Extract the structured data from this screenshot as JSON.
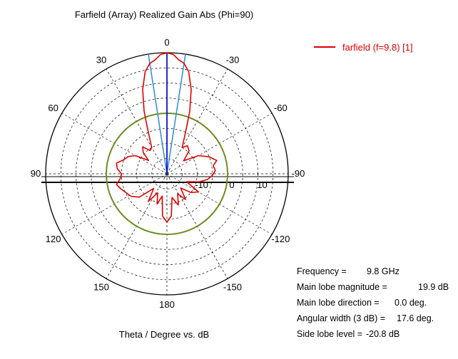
{
  "chart_data": {
    "type": "polar",
    "title": "Farfield (Array) Realized Gain Abs (Phi=90)",
    "xlabel": "Theta / Degree vs. dB",
    "angle_ticks": [
      {
        "angle": 0,
        "label": "0"
      },
      {
        "angle": 30,
        "label": "-30"
      },
      {
        "angle": 60,
        "label": "-60"
      },
      {
        "angle": 90,
        "label": "-90"
      },
      {
        "angle": 120,
        "label": "-120"
      },
      {
        "angle": 150,
        "label": "-150"
      },
      {
        "angle": 180,
        "label": "180"
      },
      {
        "angle": 210,
        "label": "150"
      },
      {
        "angle": 240,
        "label": "120"
      },
      {
        "angle": 270,
        "label": "90"
      },
      {
        "angle": 300,
        "label": "60"
      },
      {
        "angle": 330,
        "label": "30"
      }
    ],
    "radial_ticks": [
      {
        "value": -10,
        "label": "-10"
      },
      {
        "value": 0,
        "label": "0"
      },
      {
        "value": 10,
        "label": "10"
      }
    ],
    "radial_range": [
      -20,
      20
    ],
    "grid": true,
    "series": [
      {
        "name": "farfield (f=9.8) [1]",
        "color": "#e00000",
        "points": [
          [
            0,
            19.9
          ],
          [
            3,
            19.5
          ],
          [
            6,
            17.8
          ],
          [
            8.8,
            16.9
          ],
          [
            12,
            14.5
          ],
          [
            16,
            9.0
          ],
          [
            20,
            2.0
          ],
          [
            23,
            -3.5
          ],
          [
            26,
            -7.0
          ],
          [
            30,
            -10.0
          ],
          [
            36,
            -8.5
          ],
          [
            44,
            -9.5
          ],
          [
            52,
            -13.0
          ],
          [
            60,
            -8.0
          ],
          [
            68,
            -5.0
          ],
          [
            75,
            -3.0
          ],
          [
            80,
            -4.5
          ],
          [
            86,
            -4.0
          ],
          [
            92,
            -5.0
          ],
          [
            98,
            -6.5
          ],
          [
            104,
            -9.0
          ],
          [
            112,
            -13.0
          ],
          [
            120,
            -8.0
          ],
          [
            128,
            -10.0
          ],
          [
            136,
            -13.5
          ],
          [
            144,
            -9.5
          ],
          [
            152,
            -12.5
          ],
          [
            160,
            -9.0
          ],
          [
            168,
            -12.0
          ],
          [
            174,
            -6.0
          ],
          [
            180,
            -4.0
          ],
          [
            186,
            -6.0
          ],
          [
            192,
            -12.5
          ],
          [
            198,
            -9.5
          ],
          [
            206,
            -13.0
          ],
          [
            214,
            -9.0
          ],
          [
            222,
            -13.5
          ],
          [
            230,
            -8.0
          ],
          [
            238,
            -6.0
          ],
          [
            246,
            -5.0
          ],
          [
            252,
            -4.0
          ],
          [
            258,
            -3.0
          ],
          [
            264,
            -4.5
          ],
          [
            270,
            -5.0
          ],
          [
            276,
            -3.5
          ],
          [
            282,
            -3.0
          ],
          [
            288,
            -5.0
          ],
          [
            294,
            -6.0
          ],
          [
            300,
            -8.0
          ],
          [
            306,
            -12.5
          ],
          [
            312,
            -9.5
          ],
          [
            318,
            -8.0
          ],
          [
            324,
            -10.5
          ],
          [
            330,
            -10.0
          ],
          [
            334,
            -7.0
          ],
          [
            337,
            -3.5
          ],
          [
            340,
            2.0
          ],
          [
            344,
            9.0
          ],
          [
            348,
            14.5
          ],
          [
            351.2,
            16.9
          ],
          [
            354,
            17.8
          ],
          [
            357,
            19.5
          ],
          [
            360,
            19.9
          ]
        ]
      }
    ],
    "reference_circle": {
      "value": 0,
      "color": "#6b8e23"
    },
    "main_lobe_direction": 0.0,
    "beamwidth_lines": {
      "angles": [
        8.8,
        -8.8
      ],
      "color": "#3b8fe0"
    },
    "annotations": [
      {
        "label": "Frequency =",
        "value": "9.8 GHz",
        "vx": 98
      },
      {
        "label": "Main lobe magnitude =",
        "value": "19.9 dB",
        "vx": 170
      },
      {
        "label": "Main lobe direction =",
        "value": "0.0 deg.",
        "vx": 137
      },
      {
        "label": "Angular width (3 dB) =",
        "value": "17.6 deg.",
        "vx": 140
      },
      {
        "label": "Side lobe level =",
        "value": "-20.8 dB",
        "vx": 97
      }
    ]
  }
}
